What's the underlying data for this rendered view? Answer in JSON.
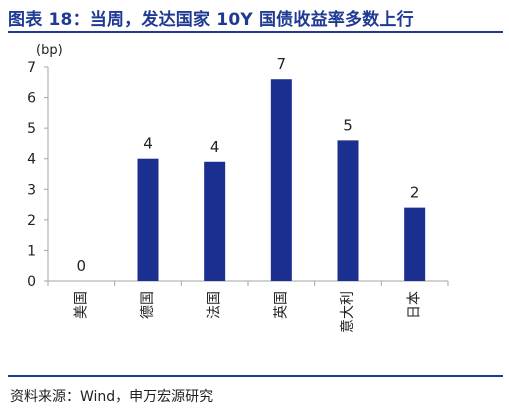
{
  "title": "图表 18：当周，发达国家 10Y 国债收益率多数上行",
  "source": "资料来源：Wind，申万宏源研究",
  "colors": {
    "bar": "#1a2f8f",
    "title": "#1f3a93",
    "axis": "#a6a6a6"
  },
  "chart_data": {
    "type": "bar",
    "unit_label": "(bp)",
    "categories": [
      "美国",
      "德国",
      "法国",
      "英国",
      "意大利",
      "日本"
    ],
    "values": [
      0,
      4,
      3.9,
      6.6,
      4.6,
      2.4
    ],
    "data_labels": [
      "0",
      "4",
      "4",
      "7",
      "5",
      "2"
    ],
    "yticks": [
      "0",
      "1",
      "2",
      "3",
      "4",
      "5",
      "6",
      "7"
    ],
    "ylim": [
      0,
      7
    ],
    "grid": false
  }
}
